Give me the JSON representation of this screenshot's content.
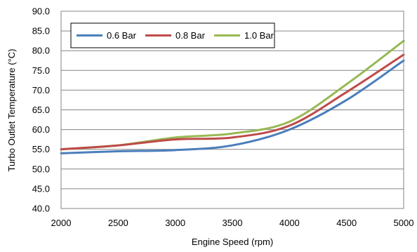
{
  "chart_data": {
    "type": "line",
    "title": "",
    "xlabel": "Engine Speed  (rpm)",
    "ylabel": "Turbo Outlet Temperature (°C)",
    "xlim": [
      2000,
      5000
    ],
    "ylim": [
      40,
      90
    ],
    "x_ticks": [
      "2000",
      "2500",
      "3000",
      "3500",
      "4000",
      "4500",
      "5000"
    ],
    "y_ticks": [
      "40.0",
      "45.0",
      "50.0",
      "55.0",
      "60.0",
      "65.0",
      "70.0",
      "75.0",
      "80.0",
      "85.0",
      "90.0"
    ],
    "grid": true,
    "legend_position": "top-left",
    "series": [
      {
        "name": "0.6 Bar",
        "color": "#4a7ebb",
        "x": [
          2000,
          2500,
          3000,
          3500,
          4000,
          4500,
          5000
        ],
        "y": [
          54.0,
          54.5,
          54.8,
          56.0,
          60.0,
          67.5,
          77.5
        ]
      },
      {
        "name": "0.8 Bar",
        "color": "#be4b48",
        "x": [
          2000,
          2500,
          3000,
          3500,
          4000,
          4500,
          5000
        ],
        "y": [
          55.0,
          56.0,
          57.5,
          58.0,
          61.0,
          69.5,
          79.0
        ]
      },
      {
        "name": "1.0 Bar",
        "color": "#98b954",
        "x": [
          2000,
          2500,
          3000,
          3500,
          4000,
          4500,
          5000
        ],
        "y": [
          55.0,
          56.0,
          58.0,
          59.0,
          62.0,
          71.5,
          82.5
        ]
      }
    ]
  }
}
